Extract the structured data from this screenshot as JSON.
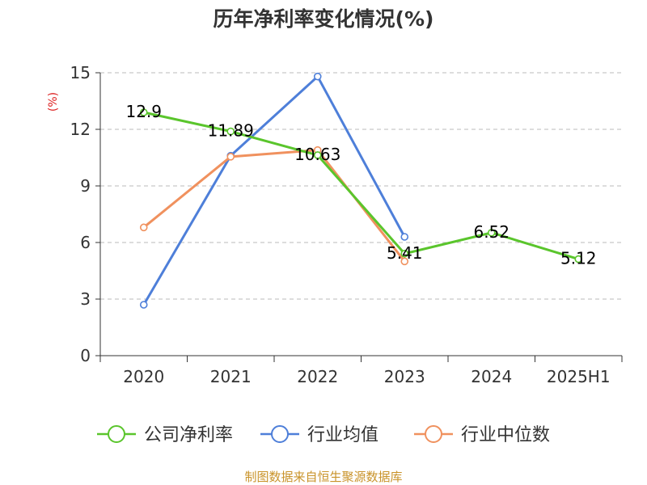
{
  "chart_data": {
    "type": "line",
    "title": "历年净利率变化情况(%)",
    "y_unit": "(%)",
    "categories": [
      "2020",
      "2021",
      "2022",
      "2023",
      "2024",
      "2025H1"
    ],
    "ylim": [
      0,
      15
    ],
    "yticks": [
      0,
      3,
      6,
      9,
      12,
      15
    ],
    "grid": true,
    "legend_position": "bottom",
    "series": [
      {
        "name": "公司净利率",
        "color": "#5ac52c",
        "values": [
          12.9,
          11.89,
          10.63,
          5.41,
          6.52,
          5.12
        ],
        "labels": [
          "12.9",
          "11.89",
          "10.63",
          "5.41",
          "6.52",
          "5.12"
        ]
      },
      {
        "name": "行业均值",
        "color": "#4e7fd9",
        "values": [
          2.7,
          10.6,
          14.8,
          6.3,
          null,
          null
        ]
      },
      {
        "name": "行业中位数",
        "color": "#f0915e",
        "values": [
          6.8,
          10.55,
          10.9,
          5.0,
          null,
          null
        ]
      }
    ]
  },
  "footer": {
    "source": "制图数据来自恒生聚源数据库",
    "color": "#c9932a"
  },
  "colors": {
    "axis": "#333333",
    "grid": "#bbbbbb",
    "unit": "#dd2222"
  }
}
